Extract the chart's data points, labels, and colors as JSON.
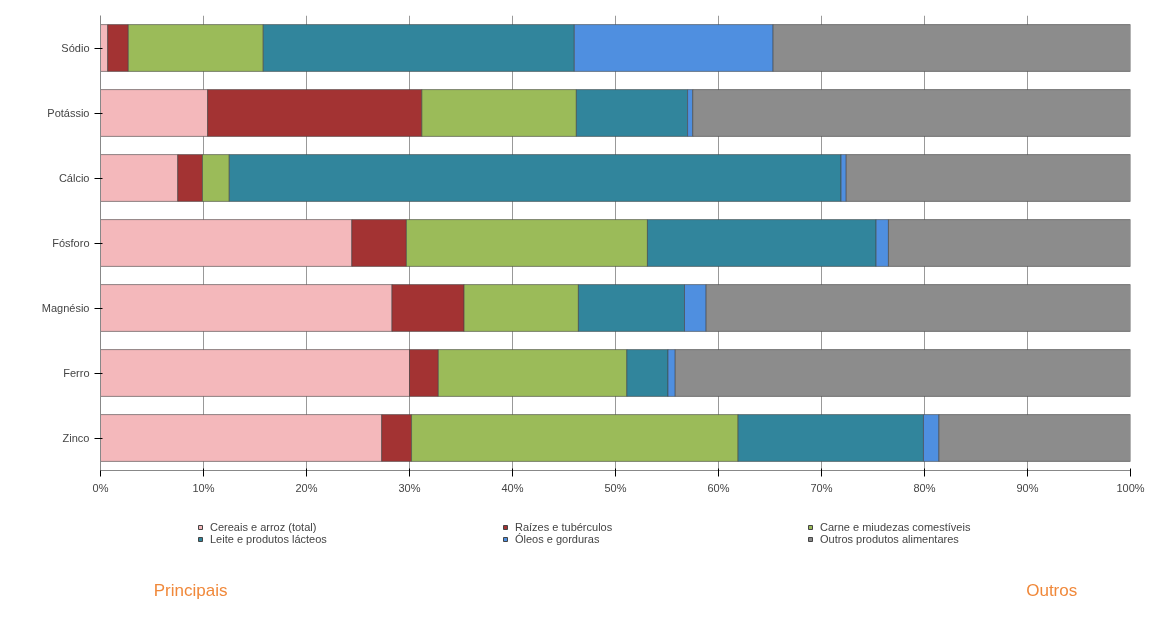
{
  "chart_data": {
    "type": "bar",
    "orientation": "horizontal",
    "stacked": true,
    "categories": [
      "Sódio",
      "Potássio",
      "Cálcio",
      "Fósforo",
      "Magnésio",
      "Ferro",
      "Zinco"
    ],
    "series": [
      {
        "name": "Cereais e arroz (total)",
        "color": "#f4b8bb",
        "values": [
          0.7,
          10.4,
          7.5,
          24.4,
          28.3,
          30.0,
          27.3
        ]
      },
      {
        "name": "Raízes e tubérculos",
        "color": "#a33333",
        "values": [
          2.0,
          20.8,
          2.4,
          5.3,
          7.0,
          2.8,
          2.9
        ]
      },
      {
        "name": "Carne e miudezas comestíveis",
        "color": "#9bbb59",
        "values": [
          13.1,
          15.0,
          2.6,
          23.4,
          11.1,
          18.3,
          31.7
        ]
      },
      {
        "name": "Leite e produtos lácteos",
        "color": "#31859c",
        "values": [
          30.2,
          10.8,
          59.4,
          22.2,
          10.3,
          4.0,
          18.0
        ]
      },
      {
        "name": "Óleos e gorduras",
        "color": "#4f8fe0",
        "values": [
          19.3,
          0.5,
          0.5,
          1.2,
          2.1,
          0.7,
          1.5
        ]
      },
      {
        "name": "Outros produtos alimentares",
        "color": "#8c8c8c",
        "values": [
          34.7,
          42.5,
          27.6,
          23.5,
          41.2,
          44.2,
          18.6
        ]
      }
    ],
    "xlim": [
      0,
      100
    ],
    "xticks": [
      {
        "value": 0,
        "label": "0%"
      },
      {
        "value": 10,
        "label": "10%"
      },
      {
        "value": 20,
        "label": "20%"
      },
      {
        "value": 30,
        "label": "30%"
      },
      {
        "value": 40,
        "label": "40%"
      },
      {
        "value": 50,
        "label": "50%"
      },
      {
        "value": 60,
        "label": "60%"
      },
      {
        "value": 70,
        "label": "70%"
      },
      {
        "value": 80,
        "label": "80%"
      },
      {
        "value": 90,
        "label": "90%"
      },
      {
        "value": 100,
        "label": "100%"
      }
    ],
    "grid": "x",
    "legend": "bottom",
    "annotations": [
      "Principais",
      "Outros"
    ]
  }
}
